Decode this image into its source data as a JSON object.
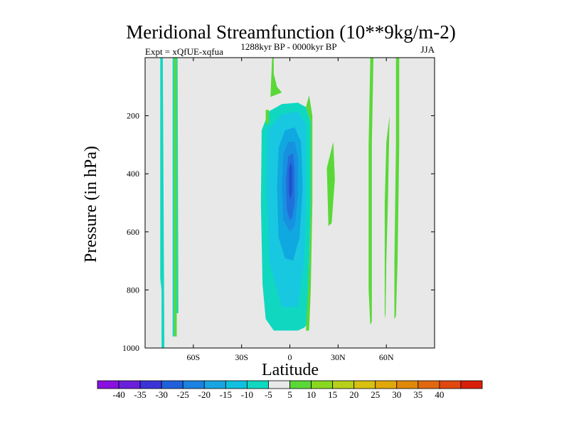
{
  "chart_data": {
    "type": "contour",
    "title": "Meridional Streamfunction (10**9kg/m-2)",
    "subtitle_left": "Expt = xQfUE-xqfua",
    "subtitle_center": "1288kyr BP - 0000kyr BP",
    "subtitle_right": "JJA",
    "xlabel": "Latitude",
    "ylabel": "Pressure (in hPa)",
    "xlim": [
      -90,
      90
    ],
    "ylim": [
      1000,
      0
    ],
    "x_ticks": [
      {
        "value": -60,
        "label": "60S"
      },
      {
        "value": -30,
        "label": "30S"
      },
      {
        "value": 0,
        "label": "0"
      },
      {
        "value": 30,
        "label": "30N"
      },
      {
        "value": 60,
        "label": "60N"
      }
    ],
    "y_ticks": [
      {
        "value": 200,
        "label": "200"
      },
      {
        "value": 400,
        "label": "400"
      },
      {
        "value": 600,
        "label": "600"
      },
      {
        "value": 800,
        "label": "800"
      },
      {
        "value": 1000,
        "label": "1000"
      }
    ],
    "colorbar": {
      "bins": [
        {
          "color": "#8a10e0"
        },
        {
          "color": "#6a1fdc"
        },
        {
          "color": "#3a34d8"
        },
        {
          "color": "#2060dc"
        },
        {
          "color": "#1a82e0"
        },
        {
          "color": "#18a4e0"
        },
        {
          "color": "#10c0e0"
        },
        {
          "color": "#10d8c0"
        },
        {
          "color": "#e8e8e8"
        },
        {
          "color": "#5ad838"
        },
        {
          "color": "#88d820"
        },
        {
          "color": "#b8d018"
        },
        {
          "color": "#d8c010"
        },
        {
          "color": "#e0a808"
        },
        {
          "color": "#e08808"
        },
        {
          "color": "#e06810"
        },
        {
          "color": "#e04810"
        },
        {
          "color": "#d82008"
        }
      ],
      "labels": [
        "-40",
        "-35",
        "-30",
        "-25",
        "-20",
        "-15",
        "-10",
        "-5",
        "5",
        "10",
        "15",
        "20",
        "25",
        "30",
        "35",
        "40"
      ]
    },
    "background_color": "#e8e8e8",
    "regions": [
      {
        "level": -5,
        "color": "#10d8c0",
        "points": [
          [
            -79.8,
            1000
          ],
          [
            -78,
            1000
          ],
          [
            -79,
            0
          ],
          [
            -80.6,
            0
          ],
          [
            -80.6,
            760
          ],
          [
            -79.8,
            800
          ]
        ]
      },
      {
        "level": -5,
        "color": "#10d8c0",
        "points": [
          [
            -72.9,
            0
          ],
          [
            -71.9,
            0
          ],
          [
            -71.9,
            960
          ],
          [
            -72.9,
            960
          ]
        ]
      },
      {
        "level": 5,
        "color": "#5ad838",
        "points": [
          [
            -71.9,
            0
          ],
          [
            -70.3,
            0
          ],
          [
            -70.3,
            960
          ],
          [
            -71.9,
            960
          ]
        ]
      },
      {
        "level": -5,
        "color": "#10d8c0",
        "points": [
          [
            -70.3,
            0
          ],
          [
            -69.8,
            0
          ],
          [
            -69.3,
            880
          ],
          [
            -70.3,
            880
          ]
        ]
      },
      {
        "level": -5,
        "color": "#10d8c0",
        "points": [
          [
            -17,
            780
          ],
          [
            -18,
            500
          ],
          [
            -17.5,
            250
          ],
          [
            -13,
            185
          ],
          [
            -5,
            160
          ],
          [
            5,
            155
          ],
          [
            10,
            170
          ],
          [
            13,
            220
          ],
          [
            13,
            500
          ],
          [
            12,
            720
          ],
          [
            12,
            910
          ],
          [
            9,
            930
          ],
          [
            5,
            940
          ],
          [
            -10,
            940
          ],
          [
            -15,
            900
          ]
        ]
      },
      {
        "level": -10,
        "color": "#18c8e0",
        "points": [
          [
            -13,
            700
          ],
          [
            -14.5,
            450
          ],
          [
            -14,
            250
          ],
          [
            -5,
            195
          ],
          [
            5,
            185
          ],
          [
            10,
            230
          ],
          [
            10,
            500
          ],
          [
            9,
            700
          ],
          [
            5,
            860
          ],
          [
            -5,
            860
          ]
        ]
      },
      {
        "level": -15,
        "color": "#10a8e0",
        "points": [
          [
            -7,
            620
          ],
          [
            -8,
            450
          ],
          [
            -7,
            310
          ],
          [
            -3,
            250
          ],
          [
            3,
            240
          ],
          [
            7,
            290
          ],
          [
            8,
            450
          ],
          [
            6,
            620
          ],
          [
            2,
            700
          ],
          [
            -3,
            690
          ]
        ]
      },
      {
        "level": -20,
        "color": "#1890e0",
        "points": [
          [
            -4,
            560
          ],
          [
            -5,
            450
          ],
          [
            -4,
            330
          ],
          [
            -1,
            290
          ],
          [
            3,
            290
          ],
          [
            5,
            340
          ],
          [
            5,
            480
          ],
          [
            3,
            580
          ],
          [
            0,
            600
          ]
        ]
      },
      {
        "level": -25,
        "color": "#2070dc",
        "points": [
          [
            -2,
            520
          ],
          [
            -2.5,
            420
          ],
          [
            -1,
            340
          ],
          [
            2,
            330
          ],
          [
            3,
            380
          ],
          [
            3,
            500
          ],
          [
            1.5,
            550
          ],
          [
            0,
            560
          ]
        ]
      },
      {
        "level": -30,
        "color": "#2050d0",
        "points": [
          [
            -0.5,
            470
          ],
          [
            -0.5,
            380
          ],
          [
            0.5,
            360
          ],
          [
            1.5,
            380
          ],
          [
            1.5,
            460
          ],
          [
            0.5,
            490
          ]
        ]
      },
      {
        "level": 5,
        "color": "#5ad838",
        "points": [
          [
            10,
            170
          ],
          [
            12,
            130
          ],
          [
            14,
            200
          ],
          [
            14,
            500
          ],
          [
            13,
            800
          ],
          [
            12,
            940
          ],
          [
            10,
            940
          ],
          [
            12,
            720
          ],
          [
            13,
            500
          ],
          [
            13,
            220
          ]
        ]
      },
      {
        "level": 5,
        "color": "#5ad838",
        "points": [
          [
            -12,
            125
          ],
          [
            -11,
            0
          ],
          [
            -10,
            0
          ],
          [
            -10,
            55
          ],
          [
            -8,
            100
          ],
          [
            -5,
            120
          ],
          [
            -12,
            135
          ]
        ]
      },
      {
        "level": 5,
        "color": "#5ad838",
        "points": [
          [
            -15,
            180
          ],
          [
            -13,
            180
          ],
          [
            -13,
            225
          ],
          [
            -15,
            230
          ]
        ]
      },
      {
        "level": 5,
        "color": "#5ad838",
        "points": [
          [
            23,
            380
          ],
          [
            27,
            290
          ],
          [
            28,
            420
          ],
          [
            26,
            570
          ],
          [
            24,
            580
          ]
        ]
      },
      {
        "level": 5,
        "color": "#5ad838",
        "points": [
          [
            50,
            0
          ],
          [
            52,
            0
          ],
          [
            51,
            300
          ],
          [
            51,
            700
          ],
          [
            51,
            910
          ],
          [
            50,
            920
          ],
          [
            49,
            800
          ],
          [
            49,
            300
          ]
        ]
      },
      {
        "level": 5,
        "color": "#5ad838",
        "points": [
          [
            60,
            290
          ],
          [
            62,
            200
          ],
          [
            61,
            500
          ],
          [
            60,
            700
          ],
          [
            59.5,
            900
          ],
          [
            59,
            880
          ],
          [
            59,
            500
          ]
        ]
      },
      {
        "level": 5,
        "color": "#5ad838",
        "points": [
          [
            66,
            0
          ],
          [
            68,
            0
          ],
          [
            68,
            300
          ],
          [
            67,
            700
          ],
          [
            66,
            890
          ],
          [
            65,
            900
          ],
          [
            65,
            700
          ],
          [
            66,
            300
          ]
        ]
      }
    ]
  }
}
